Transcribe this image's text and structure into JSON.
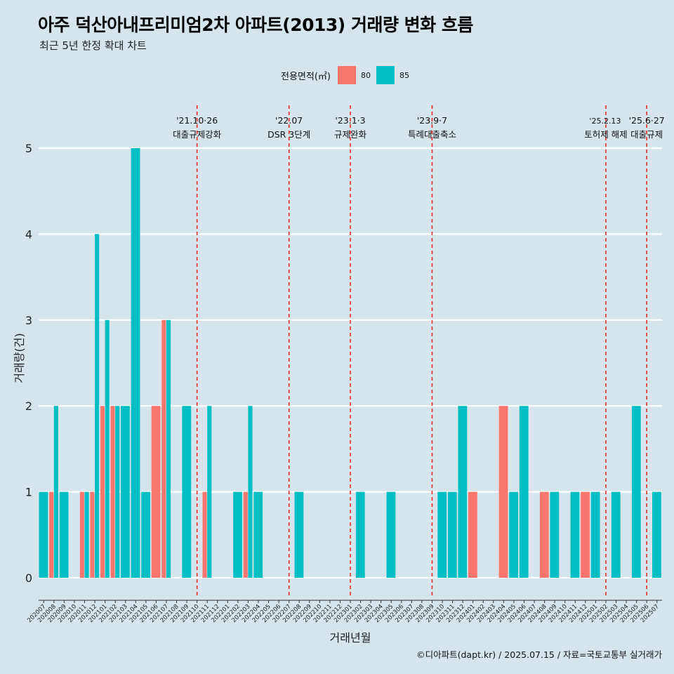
{
  "title": "아주 덕산아내프리미엄2차 아파트(2013) 거래량 변화 흐름",
  "subtitle": "최근 5년 한정 확대 차트",
  "legend": {
    "title": "전용면적(㎡)",
    "items": [
      {
        "label": "80",
        "color": "#f8766d"
      },
      {
        "label": "85",
        "color": "#00bfc4"
      }
    ]
  },
  "caption": "©디아파트(dapt.kr) / 2025.07.15 / 자료=국토교통부 실거래가",
  "chart_data": {
    "type": "bar",
    "xlabel": "거래년월",
    "ylabel": "거래량(건)",
    "ylim": [
      0,
      5
    ],
    "yticks": [
      0,
      1,
      2,
      3,
      4,
      5
    ],
    "grid": true,
    "categories": [
      "202007",
      "202008",
      "202009",
      "202010",
      "202011",
      "202012",
      "202101",
      "202102",
      "202103",
      "202104",
      "202105",
      "202106",
      "202107",
      "202108",
      "202109",
      "202110",
      "202111",
      "202112",
      "202201",
      "202202",
      "202203",
      "202204",
      "202205",
      "202206",
      "202207",
      "202208",
      "202209",
      "202210",
      "202211",
      "202212",
      "202301",
      "202302",
      "202303",
      "202304",
      "202305",
      "202306",
      "202307",
      "202308",
      "202309",
      "202310",
      "202311",
      "202312",
      "202401",
      "202402",
      "202403",
      "202404",
      "202405",
      "202406",
      "202407",
      "202408",
      "202409",
      "202410",
      "202411",
      "202412",
      "202501",
      "202502",
      "202503",
      "202504",
      "202505",
      "202506",
      "202507"
    ],
    "series": [
      {
        "name": "80",
        "color": "#f8766d",
        "values": [
          0,
          1,
          0,
          0,
          1,
          1,
          2,
          2,
          0,
          0,
          0,
          2,
          3,
          0,
          0,
          0,
          1,
          0,
          0,
          0,
          1,
          0,
          0,
          0,
          0,
          0,
          0,
          0,
          0,
          0,
          0,
          0,
          0,
          0,
          0,
          0,
          0,
          0,
          0,
          0,
          0,
          0,
          1,
          0,
          0,
          2,
          0,
          0,
          0,
          1,
          0,
          0,
          0,
          1,
          0,
          0,
          0,
          0,
          0,
          0,
          0
        ]
      },
      {
        "name": "85",
        "color": "#00bfc4",
        "values": [
          1,
          2,
          1,
          0,
          1,
          4,
          3,
          2,
          2,
          5,
          1,
          0,
          3,
          0,
          2,
          0,
          2,
          0,
          0,
          1,
          2,
          1,
          0,
          0,
          0,
          1,
          0,
          0,
          0,
          0,
          0,
          1,
          0,
          0,
          1,
          0,
          0,
          0,
          0,
          1,
          1,
          2,
          0,
          0,
          0,
          0,
          1,
          2,
          0,
          0,
          1,
          0,
          1,
          0,
          1,
          0,
          1,
          0,
          2,
          0,
          1
        ]
      }
    ],
    "events": [
      {
        "month": "202110",
        "date": "'21.10·26",
        "label": "대출규제강화"
      },
      {
        "month": "202207",
        "date": "'22.07",
        "label": "DSR 3단계"
      },
      {
        "month": "202301",
        "date": "'23.1·3",
        "label": "규제완화"
      },
      {
        "month": "202309",
        "date": "'23.9·7",
        "label": "특례대출축소"
      },
      {
        "month": "202502",
        "date": "'25.2.13",
        "label": "토허제 해제"
      },
      {
        "month": "202506",
        "date": "'25.6·27",
        "label": "대출규제"
      }
    ]
  }
}
